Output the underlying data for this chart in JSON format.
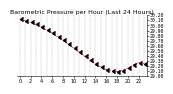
{
  "title": "Barometric Pressure per Hour (Last 24 Hours)",
  "x_values": [
    0,
    1,
    2,
    3,
    4,
    5,
    6,
    7,
    8,
    9,
    10,
    11,
    12,
    13,
    14,
    15,
    16,
    17,
    18,
    19,
    20,
    21,
    22,
    23
  ],
  "y_values": [
    30.12,
    30.09,
    30.06,
    30.02,
    29.97,
    29.91,
    29.85,
    29.78,
    29.71,
    29.63,
    29.55,
    29.47,
    29.39,
    29.31,
    29.24,
    29.18,
    29.13,
    29.1,
    29.09,
    29.11,
    29.16,
    29.22,
    29.27,
    29.25
  ],
  "line_color": "#ff0000",
  "marker_color": "#000000",
  "bg_color": "#ffffff",
  "grid_color": "#b0b0b0",
  "title_fontsize": 4.5,
  "tick_fontsize": 3.5,
  "ylim_min": 29.0,
  "ylim_max": 30.2,
  "x_tick_step": 2,
  "y_tick_values": [
    29.0,
    29.1,
    29.2,
    29.3,
    29.4,
    29.5,
    29.6,
    29.7,
    29.8,
    29.9,
    30.0,
    30.1,
    30.2
  ]
}
